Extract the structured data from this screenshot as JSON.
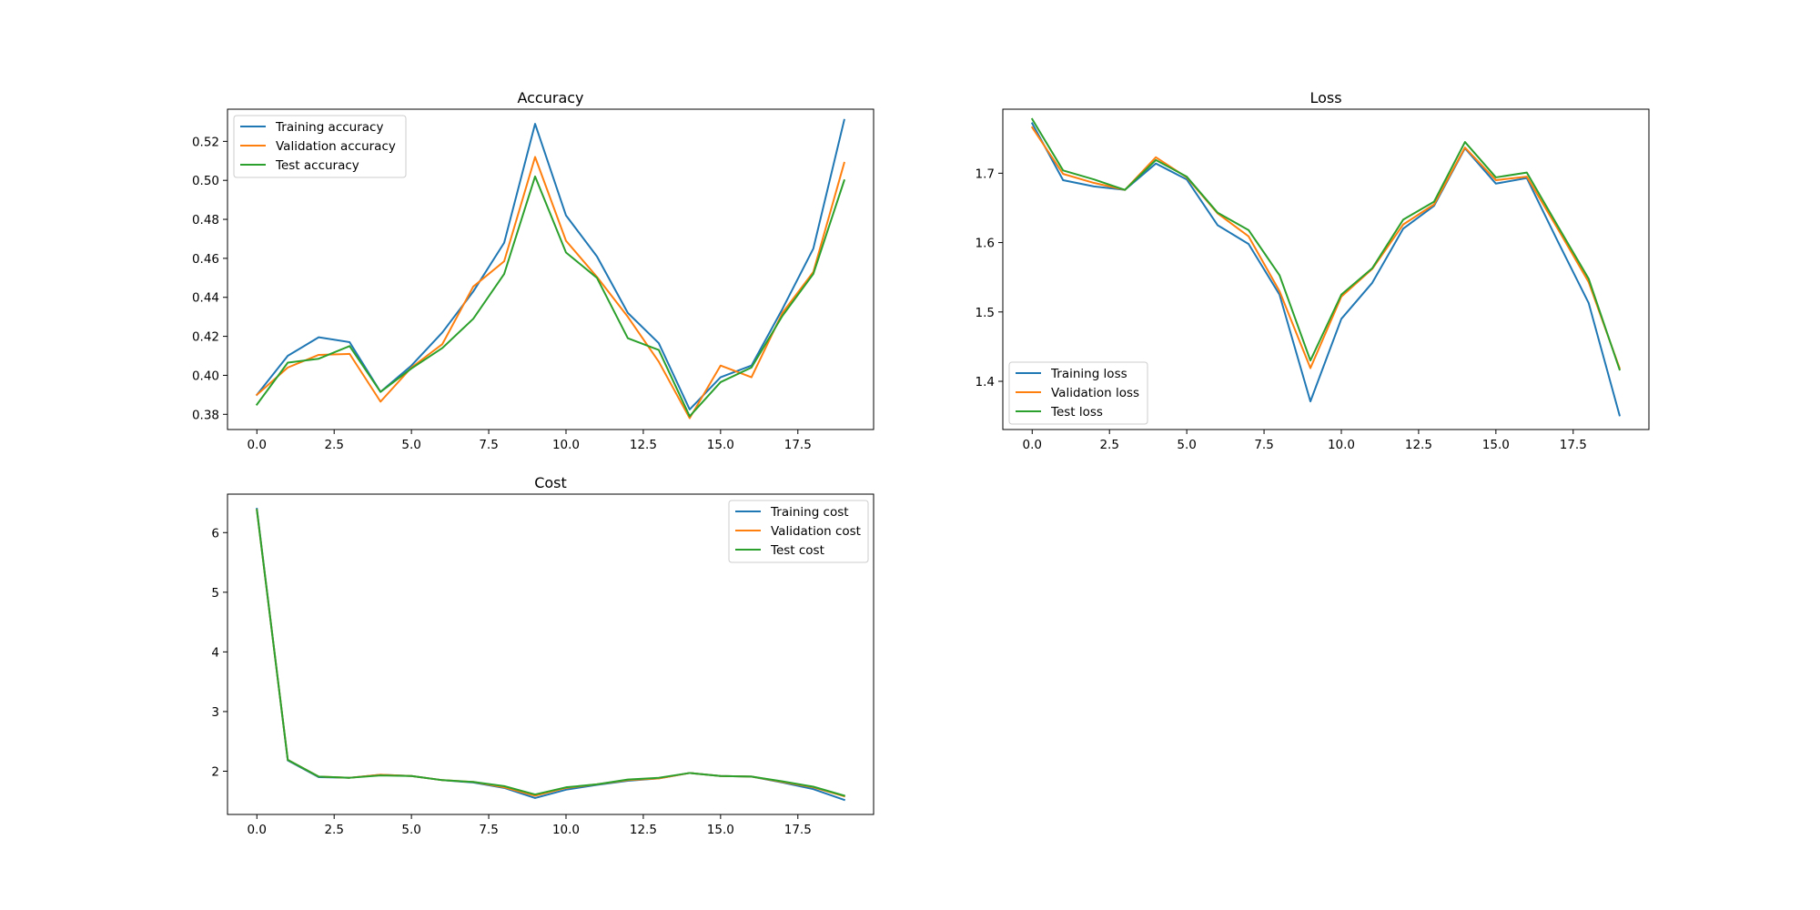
{
  "colors": {
    "training": "#1f77b4",
    "validation": "#ff7f0e",
    "test": "#2ca02c"
  },
  "chart_data": [
    {
      "type": "line",
      "title": "Accuracy",
      "xlabel": "",
      "ylabel": "",
      "xlim": [
        -0.95,
        19.95
      ],
      "ylim": [
        0.3722,
        0.5365
      ],
      "xticks": [
        "0.0",
        "2.5",
        "5.0",
        "7.5",
        "10.0",
        "12.5",
        "15.0",
        "17.5"
      ],
      "yticks": [
        "0.38",
        "0.40",
        "0.42",
        "0.44",
        "0.46",
        "0.48",
        "0.50",
        "0.52"
      ],
      "grid": false,
      "legend": "upper-left",
      "x": [
        0,
        1,
        2,
        3,
        4,
        5,
        6,
        7,
        8,
        9,
        10,
        11,
        12,
        13,
        14,
        15,
        16,
        17,
        18,
        19
      ],
      "series": [
        {
          "name": "Training accuracy",
          "color": "#1f77b4",
          "values": [
            0.39,
            0.41,
            0.4195,
            0.417,
            0.3915,
            0.405,
            0.422,
            0.443,
            0.468,
            0.529,
            0.482,
            0.461,
            0.432,
            0.4165,
            0.3825,
            0.399,
            0.405,
            0.434,
            0.465,
            0.531
          ]
        },
        {
          "name": "Validation accuracy",
          "color": "#ff7f0e",
          "values": [
            0.39,
            0.404,
            0.4105,
            0.411,
            0.3865,
            0.404,
            0.416,
            0.4455,
            0.4585,
            0.512,
            0.469,
            0.4505,
            0.43,
            0.407,
            0.378,
            0.405,
            0.399,
            0.432,
            0.453,
            0.509
          ]
        },
        {
          "name": "Test accuracy",
          "color": "#2ca02c",
          "values": [
            0.385,
            0.4065,
            0.4085,
            0.415,
            0.3915,
            0.4035,
            0.414,
            0.429,
            0.452,
            0.502,
            0.463,
            0.45,
            0.419,
            0.413,
            0.379,
            0.3965,
            0.404,
            0.4305,
            0.452,
            0.5
          ]
        }
      ]
    },
    {
      "type": "line",
      "title": "Loss",
      "xlabel": "",
      "ylabel": "",
      "xlim": [
        -0.95,
        19.95
      ],
      "ylim": [
        1.3305,
        1.7923
      ],
      "xticks": [
        "0.0",
        "2.5",
        "5.0",
        "7.5",
        "10.0",
        "12.5",
        "15.0",
        "17.5"
      ],
      "yticks": [
        "1.4",
        "1.5",
        "1.6",
        "1.7"
      ],
      "grid": false,
      "legend": "lower-left",
      "x": [
        0,
        1,
        2,
        3,
        4,
        5,
        6,
        7,
        8,
        9,
        10,
        11,
        12,
        13,
        14,
        15,
        16,
        17,
        18,
        19
      ],
      "series": [
        {
          "name": "Training loss",
          "color": "#1f77b4",
          "values": [
            1.772,
            1.69,
            1.681,
            1.676,
            1.714,
            1.691,
            1.625,
            1.598,
            1.525,
            1.371,
            1.49,
            1.542,
            1.62,
            1.653,
            1.736,
            1.685,
            1.693,
            1.602,
            1.513,
            1.351
          ]
        },
        {
          "name": "Validation loss",
          "color": "#ff7f0e",
          "values": [
            1.766,
            1.699,
            1.686,
            1.676,
            1.723,
            1.694,
            1.642,
            1.609,
            1.53,
            1.419,
            1.522,
            1.562,
            1.626,
            1.655,
            1.737,
            1.69,
            1.695,
            1.62,
            1.543,
            1.419
          ]
        },
        {
          "name": "Test loss",
          "color": "#2ca02c",
          "values": [
            1.778,
            1.704,
            1.691,
            1.676,
            1.719,
            1.695,
            1.643,
            1.618,
            1.553,
            1.43,
            1.525,
            1.563,
            1.633,
            1.659,
            1.745,
            1.694,
            1.701,
            1.624,
            1.548,
            1.417
          ]
        }
      ]
    },
    {
      "type": "line",
      "title": "Cost",
      "xlabel": "",
      "ylabel": "",
      "xlim": [
        -0.95,
        19.95
      ],
      "ylim": [
        1.275,
        6.645
      ],
      "xticks": [
        "0.0",
        "2.5",
        "5.0",
        "7.5",
        "10.0",
        "12.5",
        "15.0",
        "17.5"
      ],
      "yticks": [
        "2",
        "3",
        "4",
        "5",
        "6"
      ],
      "grid": false,
      "legend": "upper-right",
      "x": [
        0,
        1,
        2,
        3,
        4,
        5,
        6,
        7,
        8,
        9,
        10,
        11,
        12,
        13,
        14,
        15,
        16,
        17,
        18,
        19
      ],
      "series": [
        {
          "name": "Training cost",
          "color": "#1f77b4",
          "values": [
            6.4,
            2.18,
            1.9,
            1.89,
            1.94,
            1.92,
            1.85,
            1.81,
            1.72,
            1.55,
            1.69,
            1.77,
            1.84,
            1.88,
            1.97,
            1.92,
            1.91,
            1.81,
            1.7,
            1.52
          ]
        },
        {
          "name": "Validation cost",
          "color": "#ff7f0e",
          "values": [
            6.38,
            2.19,
            1.91,
            1.89,
            1.94,
            1.92,
            1.85,
            1.82,
            1.73,
            1.59,
            1.72,
            1.78,
            1.85,
            1.88,
            1.97,
            1.92,
            1.91,
            1.82,
            1.73,
            1.58
          ]
        },
        {
          "name": "Test cost",
          "color": "#2ca02c",
          "values": [
            6.38,
            2.19,
            1.91,
            1.89,
            1.93,
            1.92,
            1.85,
            1.82,
            1.75,
            1.61,
            1.73,
            1.78,
            1.86,
            1.89,
            1.97,
            1.92,
            1.91,
            1.83,
            1.74,
            1.59
          ]
        }
      ]
    }
  ]
}
